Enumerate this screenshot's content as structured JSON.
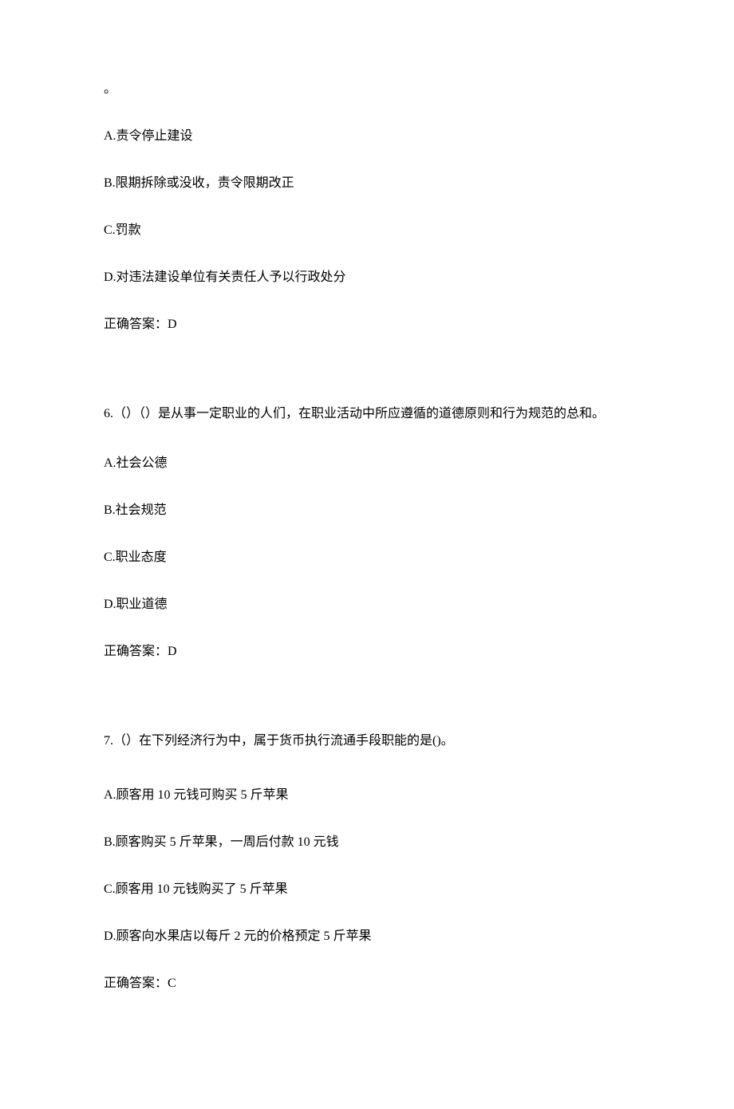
{
  "q5_fragment": "。",
  "q5_options": {
    "a": "A.责令停止建设",
    "b": "B.限期拆除或没收，责令限期改正",
    "c": "C.罚款",
    "d": "D.对违法建设单位有关责任人予以行政处分"
  },
  "q5_answer": "正确答案：D",
  "q6_text": "6.（）（）是从事一定职业的人们，在职业活动中所应遵循的道德原则和行为规范的总和。",
  "q6_options": {
    "a": "A.社会公德",
    "b": "B.社会规范",
    "c": "C.职业态度",
    "d": "D.职业道德"
  },
  "q6_answer": "正确答案：D",
  "q7_text": "7.（）在下列经济行为中，属于货币执行流通手段职能的是()。",
  "q7_options": {
    "a": "A.顾客用 10 元钱可购买 5 斤苹果",
    "b": "B.顾客购买 5 斤苹果，一周后付款 10 元钱",
    "c": "C.顾客用 10 元钱购买了 5 斤苹果",
    "d": "D.顾客向水果店以每斤 2 元的价格预定 5 斤苹果"
  },
  "q7_answer": "正确答案：C"
}
